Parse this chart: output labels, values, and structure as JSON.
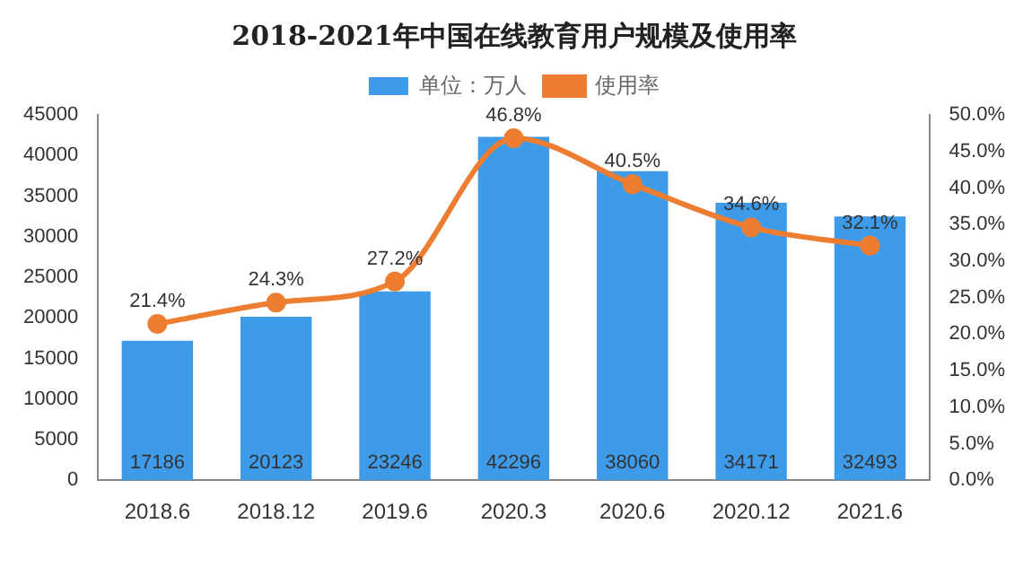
{
  "chart_data": {
    "type": "bar",
    "title": "2018-2021年中国在线教育用户规模及使用率",
    "categories": [
      "2018.6",
      "2018.12",
      "2019.6",
      "2020.3",
      "2020.6",
      "2020.12",
      "2021.6"
    ],
    "series": [
      {
        "name": "单位：万人",
        "color": "#3d9be9",
        "values": [
          17186,
          20123,
          23246,
          42296,
          38060,
          34171,
          32493
        ]
      },
      {
        "name": "使用率",
        "type": "line",
        "axis": "y2",
        "color": "#ed7d31",
        "values": [
          21.4,
          24.3,
          27.2,
          46.8,
          40.5,
          34.6,
          32.1
        ],
        "value_labels": [
          "21.4%",
          "24.3%",
          "27.2%",
          "46.8%",
          "40.5%",
          "34.6%",
          "32.1%"
        ]
      }
    ],
    "ylim": [
      0,
      45000
    ],
    "yticks": [
      0,
      5000,
      10000,
      15000,
      20000,
      25000,
      30000,
      35000,
      40000,
      45000
    ],
    "y2lim": [
      0,
      50
    ],
    "y2ticks": [
      {
        "value": 0,
        "label": "0.0%"
      },
      {
        "value": 5,
        "label": "5.0%"
      },
      {
        "value": 10,
        "label": "10.0%"
      },
      {
        "value": 15,
        "label": "15.0%"
      },
      {
        "value": 20,
        "label": "20.0%"
      },
      {
        "value": 25,
        "label": "25.0%"
      },
      {
        "value": 30,
        "label": "30.0%"
      },
      {
        "value": 35,
        "label": "35.0%"
      },
      {
        "value": 40,
        "label": "40.0%"
      },
      {
        "value": 45,
        "label": "45.0%"
      },
      {
        "value": 50,
        "label": "50.0%"
      }
    ],
    "legend": "top",
    "marker": "circle",
    "data_labels": true
  }
}
